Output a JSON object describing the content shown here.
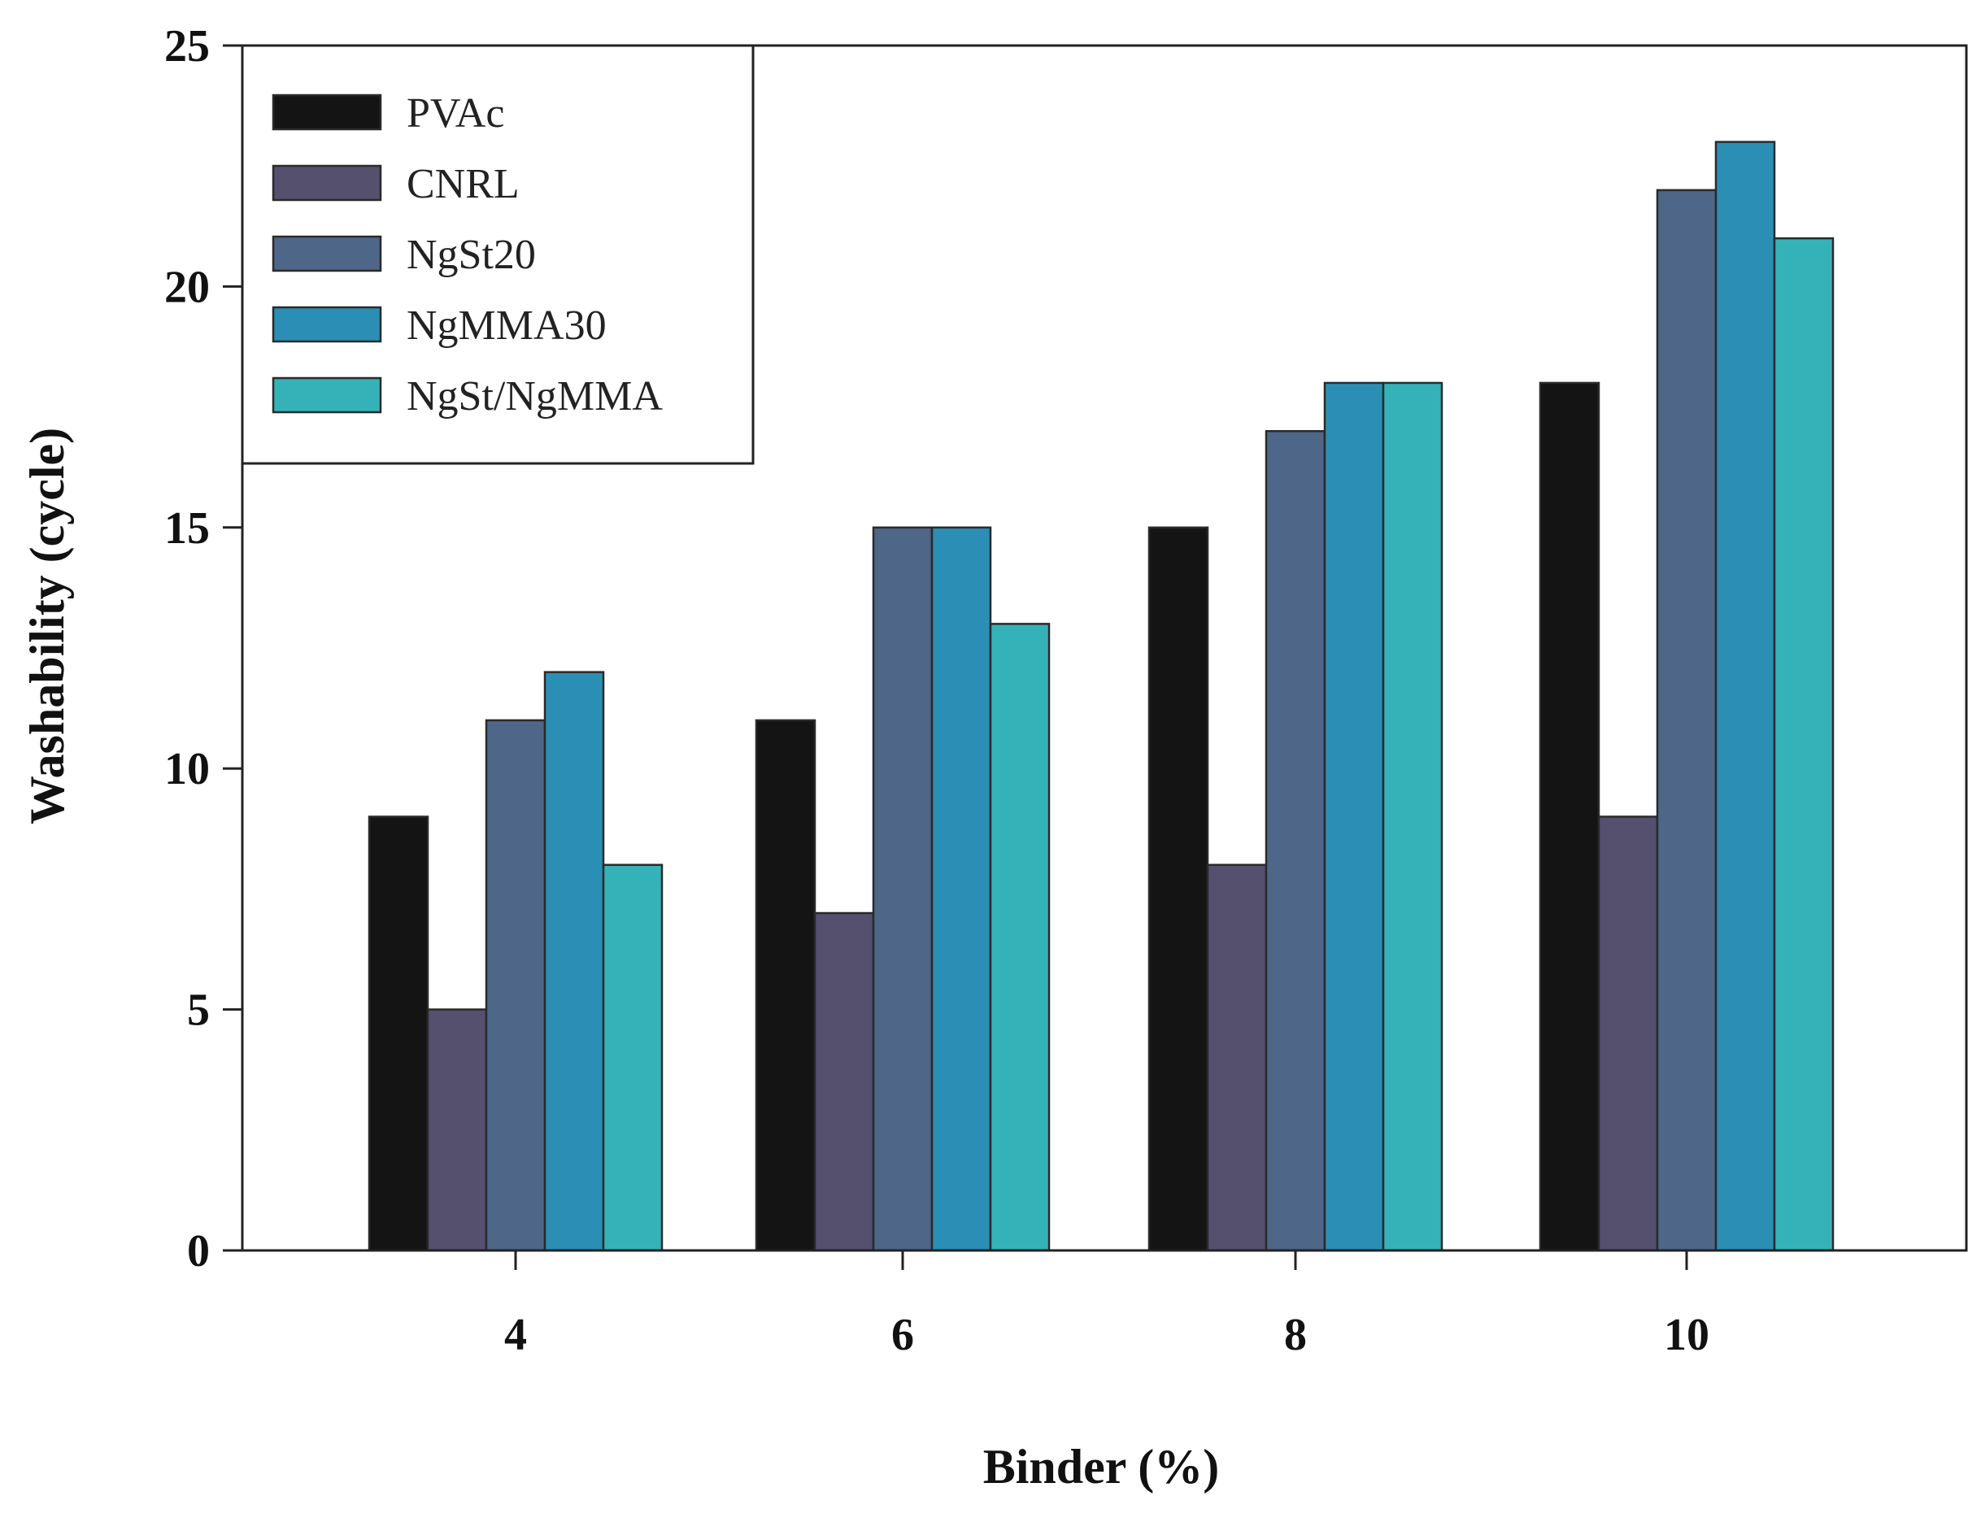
{
  "chart_data": {
    "type": "bar",
    "categories": [
      "4",
      "6",
      "8",
      "10"
    ],
    "series": [
      {
        "name": "PVAc",
        "color": "#141414",
        "values": [
          9,
          11,
          15,
          18
        ]
      },
      {
        "name": "CNRL",
        "color": "#55506e",
        "values": [
          5,
          7,
          8,
          9
        ]
      },
      {
        "name": "NgSt20",
        "color": "#4e6688",
        "values": [
          11,
          15,
          17,
          22
        ]
      },
      {
        "name": "NgMMA30",
        "color": "#2b8fb5",
        "values": [
          12,
          15,
          18,
          23
        ]
      },
      {
        "name": "NgSt/NgMMA",
        "color": "#35b2b8",
        "values": [
          8,
          13,
          18,
          21
        ]
      }
    ],
    "title": "",
    "xlabel": "Binder (%)",
    "ylabel": "Washability (cycle)",
    "ylim": [
      0,
      25
    ],
    "yticks": [
      "0",
      "5",
      "10",
      "15",
      "20",
      "25"
    ],
    "grid": false,
    "legend_position": "top-left"
  }
}
